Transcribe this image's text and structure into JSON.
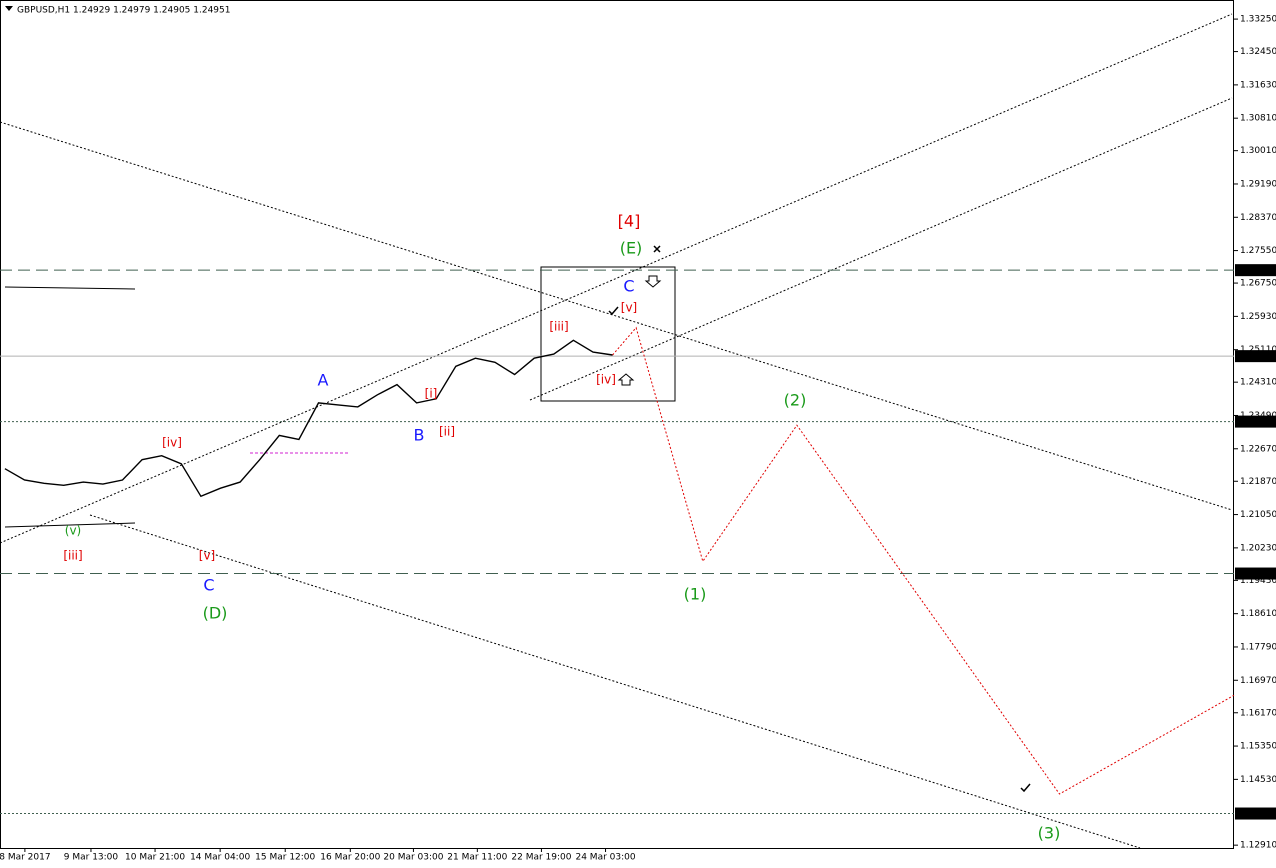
{
  "chart_data": {
    "type": "line",
    "title": "GBPUSD,H1  1.24929 1.24979 1.24905 1.24951",
    "xlim": [
      -0.25,
      62.7
    ],
    "ylim": [
      1.1284,
      1.3372
    ],
    "xticks": [
      {
        "value": 1.02,
        "label": "8 Mar 2017"
      },
      {
        "value": 4.39,
        "label": "9 Mar 13:00"
      },
      {
        "value": 7.66,
        "label": "10 Mar 21:00"
      },
      {
        "value": 10.98,
        "label": "14 Mar 04:00"
      },
      {
        "value": 14.3,
        "label": "15 Mar 12:00"
      },
      {
        "value": 17.62,
        "label": "16 Mar 20:00"
      },
      {
        "value": 20.84,
        "label": "20 Mar 03:00"
      },
      {
        "value": 24.1,
        "label": "21 Mar 11:00"
      },
      {
        "value": 27.37,
        "label": "22 Mar 19:00"
      },
      {
        "value": 30.64,
        "label": "24 Mar 03:00"
      }
    ],
    "yticks": [
      {
        "value": 1.3325,
        "label": "1.33250"
      },
      {
        "value": 1.3245,
        "label": "1.32450"
      },
      {
        "value": 1.3163,
        "label": "1.31630"
      },
      {
        "value": 1.3081,
        "label": "1.30810"
      },
      {
        "value": 1.3001,
        "label": "1.30010"
      },
      {
        "value": 1.2919,
        "label": "1.29190"
      },
      {
        "value": 1.2837,
        "label": "1.28370"
      },
      {
        "value": 1.2755,
        "label": "1.27550"
      },
      {
        "value": 1.2675,
        "label": "1.26750"
      },
      {
        "value": 1.2593,
        "label": "1.25930"
      },
      {
        "value": 1.2511,
        "label": "1.25110"
      },
      {
        "value": 1.2431,
        "label": "1.24310"
      },
      {
        "value": 1.2349,
        "label": "1.23490"
      },
      {
        "value": 1.2267,
        "label": "1.22670"
      },
      {
        "value": 1.2187,
        "label": "1.21870"
      },
      {
        "value": 1.2105,
        "label": "1.21050"
      },
      {
        "value": 1.2023,
        "label": "1.20230"
      },
      {
        "value": 1.1943,
        "label": "1.19430"
      },
      {
        "value": 1.1861,
        "label": "1.18610"
      },
      {
        "value": 1.1779,
        "label": "1.17790"
      },
      {
        "value": 1.1697,
        "label": "1.16970"
      },
      {
        "value": 1.1617,
        "label": "1.16170"
      },
      {
        "value": 1.1535,
        "label": "1.15350"
      },
      {
        "value": 1.1453,
        "label": "1.14530"
      },
      {
        "value": 1.1291,
        "label": "1.12910"
      }
    ],
    "levels": [
      {
        "value": 1.27068,
        "label": "1.27068",
        "style": "dashed"
      },
      {
        "value": 1.24951,
        "label": "1.24951",
        "style": "solid"
      },
      {
        "value": 1.23339,
        "label": "1.23339",
        "style": "dotted"
      },
      {
        "value": 1.19598,
        "label": "1.19598",
        "style": "dashed"
      },
      {
        "value": 1.13689,
        "label": "1.13689",
        "style": "dotted"
      }
    ],
    "series": [
      {
        "color": "#000000",
        "x": [
          0,
          1,
          2,
          3,
          4,
          5,
          6,
          7,
          8,
          9,
          10,
          11,
          12,
          13,
          14,
          15,
          16,
          17,
          18,
          19,
          20,
          21,
          22,
          23,
          24,
          25,
          26,
          27,
          28,
          29,
          30,
          31
        ],
        "values": [
          1.2218,
          1.219,
          1.2182,
          1.2177,
          1.2185,
          1.218,
          1.219,
          1.224,
          1.225,
          1.223,
          1.215,
          1.217,
          1.2185,
          1.224,
          1.23,
          1.229,
          1.238,
          1.2375,
          1.237,
          1.24,
          1.2425,
          1.238,
          1.239,
          1.247,
          1.249,
          1.248,
          1.245,
          1.249,
          1.25,
          1.2534,
          1.2505,
          1.2498
        ]
      },
      {
        "color": "#e00000",
        "x": [
          31,
          32.2,
          35.6,
          40.4,
          53.8,
          62.7
        ],
        "values": [
          1.2498,
          1.2565,
          1.199,
          1.2325,
          1.1417,
          1.166
        ]
      }
    ],
    "annotations": [
      {
        "text": "[4]",
        "color": "#e00000"
      },
      {
        "text": "(E)",
        "color": "#1a9a1a"
      },
      {
        "text": "C",
        "color": "#1a1aff"
      },
      {
        "text": "[v]",
        "color": "#e00000"
      },
      {
        "text": "[iii]",
        "color": "#e00000"
      },
      {
        "text": "[iv]",
        "color": "#e00000"
      },
      {
        "text": "A",
        "color": "#1a1aff"
      },
      {
        "text": "[i]",
        "color": "#e00000"
      },
      {
        "text": "B",
        "color": "#1a1aff"
      },
      {
        "text": "[ii]",
        "color": "#e00000"
      },
      {
        "text": "[iv]",
        "color": "#e00000"
      },
      {
        "text": "(v)",
        "color": "#1a9a1a"
      },
      {
        "text": "[iii]",
        "color": "#e00000"
      },
      {
        "text": "[v]",
        "color": "#e00000"
      },
      {
        "text": "C",
        "color": "#1a1aff"
      },
      {
        "text": "(D)",
        "color": "#1a9a1a"
      },
      {
        "text": "(2)",
        "color": "#1a9a1a"
      },
      {
        "text": "(1)",
        "color": "#1a9a1a"
      },
      {
        "text": "(3)",
        "color": "#1a9a1a"
      }
    ]
  }
}
